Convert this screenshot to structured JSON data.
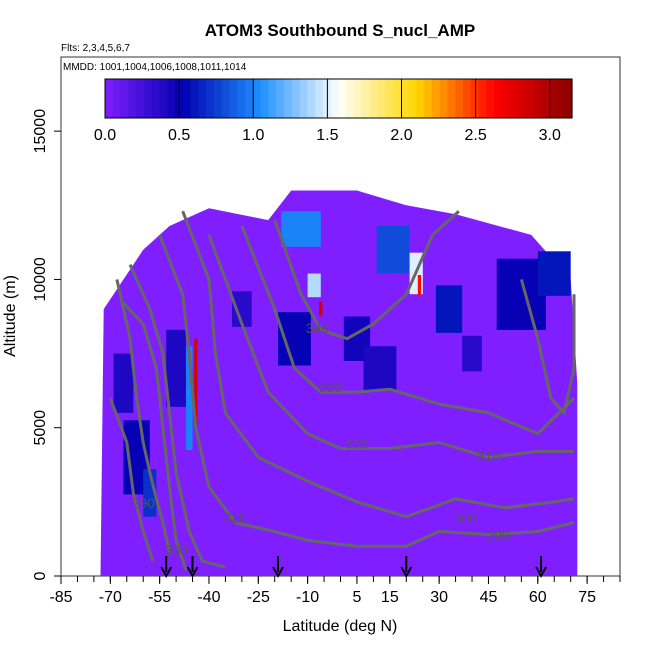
{
  "chart_data": {
    "type": "heatmap",
    "title": "ATOM3 Southbound S_nucl_AMP",
    "subtitle_flights": "Flts: 2,3,4,5,6,7",
    "subtitle_dates": "MMDD: 1001,1004,1006,1008,1011,1014",
    "xlabel": "Latitude (deg N)",
    "ylabel": "Altitude (m)",
    "xlim": [
      -85,
      85
    ],
    "ylim": [
      0,
      17500
    ],
    "x_ticks": [
      -85,
      -70,
      -55,
      -40,
      -25,
      -10,
      5,
      15,
      30,
      45,
      60,
      75
    ],
    "y_ticks": [
      0,
      5000,
      10000,
      15000
    ],
    "colorbar": {
      "min": 0,
      "max": 3.15,
      "ticks": [
        0.0,
        0.5,
        1.0,
        1.5,
        2.0,
        2.5,
        3.0
      ],
      "tick_labels": [
        "0.0",
        "0.5",
        "1.0",
        "1.5",
        "2.0",
        "2.5",
        "3.0"
      ],
      "colors": [
        "#7f1fff",
        "#0000b0",
        "#1e90ff",
        "#ffffff",
        "#ffd700",
        "#ff0000",
        "#8b0000"
      ]
    },
    "background_color": "#7f1fff",
    "data_extent": {
      "lat_range": [
        -72,
        72
      ],
      "altitude_max_by_lat": [
        {
          "lat": -73,
          "alt": 0
        },
        {
          "lat": -72,
          "alt": 9000
        },
        {
          "lat": -66,
          "alt": 10000
        },
        {
          "lat": -60,
          "alt": 11000
        },
        {
          "lat": -52,
          "alt": 11800
        },
        {
          "lat": -40,
          "alt": 12400
        },
        {
          "lat": -22,
          "alt": 12000
        },
        {
          "lat": -15,
          "alt": 13000
        },
        {
          "lat": 5,
          "alt": 13000
        },
        {
          "lat": 20,
          "alt": 12500
        },
        {
          "lat": 35,
          "alt": 12200
        },
        {
          "lat": 58,
          "alt": 11500
        },
        {
          "lat": 70,
          "alt": 10000
        },
        {
          "lat": 72,
          "alt": 6500
        },
        {
          "lat": 72,
          "alt": 0
        }
      ]
    },
    "hotspots": [
      {
        "lat": -12,
        "alt": 11700,
        "w": 12,
        "h": 1200,
        "value": 1.0
      },
      {
        "lat": -8,
        "alt": 9800,
        "w": 4,
        "h": 800,
        "value": 1.4
      },
      {
        "lat": -6,
        "alt": 9000,
        "w": 1,
        "h": 500,
        "value": 2.8
      },
      {
        "lat": -14,
        "alt": 8000,
        "w": 10,
        "h": 1800,
        "value": 0.5
      },
      {
        "lat": 16,
        "alt": 11000,
        "w": 10,
        "h": 1600,
        "value": 0.8
      },
      {
        "lat": 23,
        "alt": 10200,
        "w": 4,
        "h": 1400,
        "value": 1.5
      },
      {
        "lat": 24,
        "alt": 9800,
        "w": 1,
        "h": 700,
        "value": 2.6
      },
      {
        "lat": 33,
        "alt": 9000,
        "w": 8,
        "h": 1600,
        "value": 0.6
      },
      {
        "lat": 55,
        "alt": 9500,
        "w": 15,
        "h": 2400,
        "value": 0.5
      },
      {
        "lat": 65,
        "alt": 10200,
        "w": 10,
        "h": 1500,
        "value": 0.6
      },
      {
        "lat": -50,
        "alt": 7000,
        "w": 6,
        "h": 2600,
        "value": 0.4
      },
      {
        "lat": -46,
        "alt": 6000,
        "w": 2,
        "h": 3500,
        "value": 1.0
      },
      {
        "lat": -44,
        "alt": 6500,
        "w": 1,
        "h": 3000,
        "value": 2.8
      },
      {
        "lat": -62,
        "alt": 4000,
        "w": 8,
        "h": 2500,
        "value": 0.5
      },
      {
        "lat": -58,
        "alt": 2800,
        "w": 4,
        "h": 1600,
        "value": 0.7
      },
      {
        "lat": -30,
        "alt": 9000,
        "w": 6,
        "h": 1200,
        "value": 0.35
      },
      {
        "lat": 5,
        "alt": 8000,
        "w": 8,
        "h": 1500,
        "value": 0.45
      },
      {
        "lat": 40,
        "alt": 7500,
        "w": 6,
        "h": 1200,
        "value": 0.35
      },
      {
        "lat": -66,
        "alt": 6500,
        "w": 6,
        "h": 2000,
        "value": 0.4
      },
      {
        "lat": 12,
        "alt": 7000,
        "w": 10,
        "h": 1500,
        "value": 0.4
      }
    ],
    "contour_labels": [
      {
        "text": "340",
        "lat": -7,
        "alt": 8200
      },
      {
        "text": "330",
        "lat": -3,
        "alt": 6200
      },
      {
        "text": "320",
        "lat": 5,
        "alt": 4300
      },
      {
        "text": "310",
        "lat": 45,
        "alt": 3900
      },
      {
        "text": "300",
        "lat": 38,
        "alt": 1800
      },
      {
        "text": "290",
        "lat": 48,
        "alt": 1200
      },
      {
        "text": "320",
        "lat": -32,
        "alt": 1800
      },
      {
        "text": "290",
        "lat": -60,
        "alt": 2300
      },
      {
        "text": "300",
        "lat": -50,
        "alt": 700
      }
    ],
    "contours": [
      [
        [
          -66,
          9200
        ],
        [
          -60,
          8500
        ],
        [
          -56,
          7000
        ],
        [
          -54,
          5000
        ],
        [
          -52,
          3000
        ],
        [
          -50,
          1200
        ],
        [
          -47,
          200
        ]
      ],
      [
        [
          -64,
          10500
        ],
        [
          -58,
          9000
        ],
        [
          -54,
          7500
        ],
        [
          -52,
          5500
        ],
        [
          -50,
          3500
        ],
        [
          -46,
          1500
        ],
        [
          -42,
          500
        ],
        [
          -35,
          300
        ]
      ],
      [
        [
          -55,
          11500
        ],
        [
          -48,
          9500
        ],
        [
          -46,
          7500
        ],
        [
          -44,
          5000
        ],
        [
          -40,
          3000
        ],
        [
          -32,
          1800
        ],
        [
          -20,
          1500
        ],
        [
          -10,
          1200
        ],
        [
          5,
          1000
        ],
        [
          20,
          1000
        ],
        [
          30,
          1500
        ],
        [
          45,
          1400
        ],
        [
          60,
          1500
        ],
        [
          71,
          1800
        ]
      ],
      [
        [
          -48,
          12300
        ],
        [
          -40,
          10000
        ],
        [
          -38,
          7500
        ],
        [
          -35,
          5500
        ],
        [
          -25,
          4000
        ],
        [
          -10,
          3200
        ],
        [
          5,
          2500
        ],
        [
          20,
          2000
        ],
        [
          35,
          2600
        ],
        [
          50,
          2300
        ],
        [
          65,
          2500
        ],
        [
          71,
          2600
        ]
      ],
      [
        [
          -40,
          11500
        ],
        [
          -30,
          8500
        ],
        [
          -22,
          6200
        ],
        [
          -10,
          4800
        ],
        [
          0,
          4300
        ],
        [
          15,
          4300
        ],
        [
          30,
          4500
        ],
        [
          45,
          4000
        ],
        [
          60,
          4200
        ],
        [
          71,
          4200
        ]
      ],
      [
        [
          -30,
          11800
        ],
        [
          -20,
          9000
        ],
        [
          -14,
          7000
        ],
        [
          -6,
          6200
        ],
        [
          5,
          6200
        ],
        [
          15,
          6300
        ],
        [
          30,
          5800
        ],
        [
          45,
          5500
        ],
        [
          60,
          4800
        ],
        [
          71,
          6000
        ]
      ],
      [
        [
          -20,
          12000
        ],
        [
          -12,
          9500
        ],
        [
          -6,
          8300
        ],
        [
          2,
          8000
        ],
        [
          10,
          8500
        ],
        [
          20,
          9500
        ],
        [
          28,
          11500
        ],
        [
          36,
          12300
        ]
      ],
      [
        [
          -70,
          6000
        ],
        [
          -65,
          4500
        ],
        [
          -63,
          2800
        ],
        [
          -60,
          1500
        ],
        [
          -57,
          500
        ]
      ],
      [
        [
          55,
          10000
        ],
        [
          60,
          8000
        ],
        [
          64,
          6000
        ],
        [
          68,
          5500
        ],
        [
          71,
          7000
        ],
        [
          71,
          9500
        ]
      ],
      [
        [
          -68,
          10000
        ],
        [
          -64,
          8000
        ],
        [
          -62,
          6000
        ],
        [
          -60,
          4500
        ],
        [
          -58,
          3500
        ],
        [
          -56,
          2600
        ],
        [
          -54,
          1800
        ],
        [
          -52,
          800
        ]
      ]
    ],
    "arrow_markers_lat": [
      -53,
      -45,
      -19,
      20,
      61
    ]
  }
}
